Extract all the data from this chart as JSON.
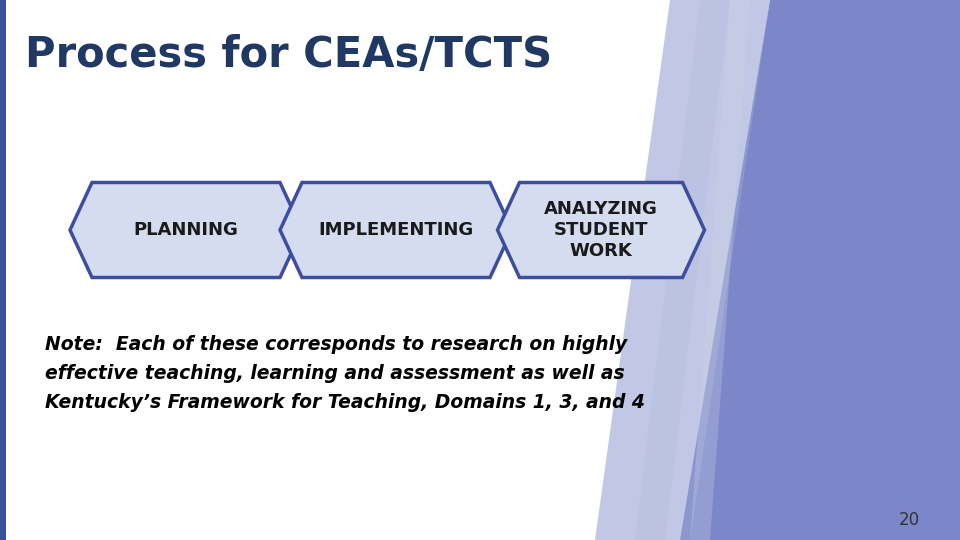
{
  "title": "Process for CEAs/TCTS",
  "title_color": "#1F3864",
  "title_fontsize": 30,
  "bg_color": "#FFFFFF",
  "steps": [
    "PLANNING",
    "IMPLEMENTING",
    "ANALYZING\nSTUDENT\nWORK"
  ],
  "step_box_color": "#D6DCF0",
  "step_box_edge_color": "#3B4EA0",
  "step_text_color": "#1A1A1A",
  "step_fontsize": 13,
  "note_text": "Note:  Each of these corresponds to research on highly\neffective teaching, learning and assessment as well as\nKentucky’s Framework for Teaching, Domains 1, 3, and 4",
  "note_fontsize": 13.5,
  "note_color": "#000000",
  "page_num": "20",
  "page_num_color": "#333333",
  "page_num_fontsize": 12,
  "right_panel_color": "#7B87C8",
  "right_panel2_color": "#9AA3D5",
  "right_panel3_color": "#B5BCE0",
  "right_panel4_color": "#CDD2E8"
}
